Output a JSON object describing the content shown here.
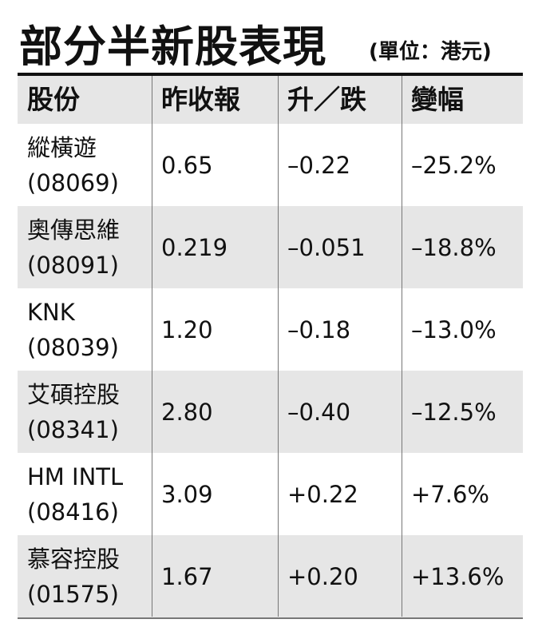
{
  "header": {
    "title": "部分半新股表現",
    "unit": "(單位：港元)"
  },
  "table": {
    "columns": [
      "股份",
      "昨收報",
      "升／跌",
      "變幅"
    ],
    "rows": [
      [
        "縱橫遊",
        "(08069)",
        "0.65",
        "–0.22",
        "–25.2%"
      ],
      [
        "奧傳思維",
        "(08091)",
        "0.219",
        "–0.051",
        "–18.8%"
      ],
      [
        "KNK",
        "(08039)",
        "1.20",
        "–0.18",
        "–13.0%"
      ],
      [
        "艾碩控股",
        "(08341)",
        "2.80",
        "–0.40",
        "–12.5%"
      ],
      [
        "HM INTL",
        "(08416)",
        "3.09",
        "+0.22",
        "+7.6%"
      ],
      [
        "慕容控股",
        "(01575)",
        "1.67",
        "+0.20",
        "+13.6%"
      ]
    ]
  }
}
